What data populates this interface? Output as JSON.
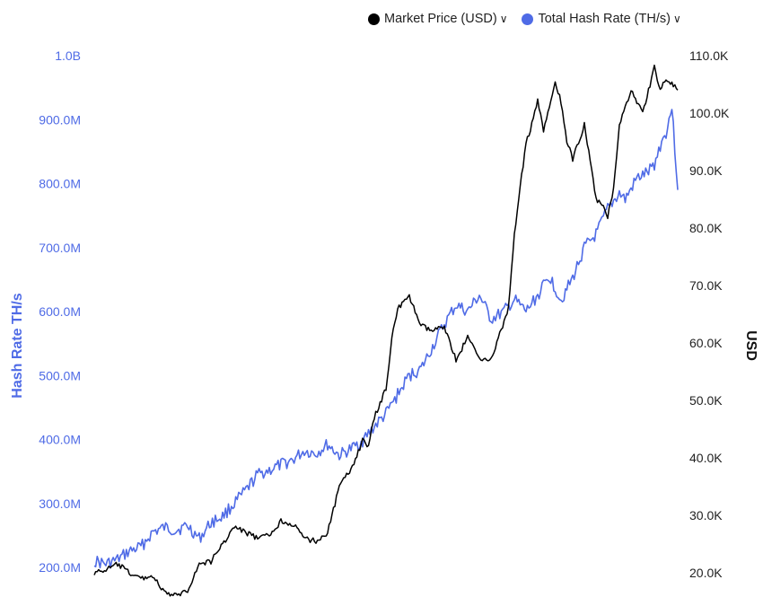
{
  "legend": {
    "items": [
      {
        "label": "Market Price (USD)",
        "color": "#000000",
        "icon": "chevron-down-icon"
      },
      {
        "label": "Total Hash Rate (TH/s)",
        "color": "#4f6be6",
        "icon": "chevron-down-icon"
      }
    ]
  },
  "chart_data": {
    "type": "line",
    "title": "",
    "left_axis": {
      "label": "Hash Rate TH/s",
      "range": [
        200000000,
        1000000000
      ],
      "ticks": [
        "200.0M",
        "300.0M",
        "400.0M",
        "500.0M",
        "600.0M",
        "700.0M",
        "800.0M",
        "900.0M",
        "1.0B"
      ]
    },
    "right_axis": {
      "label": "USD",
      "range": [
        20000,
        110000
      ],
      "ticks": [
        "20.0K",
        "30.0K",
        "40.0K",
        "50.0K",
        "60.0K",
        "70.0K",
        "80.0K",
        "90.0K",
        "100.0K",
        "110.0K"
      ]
    },
    "grid": false,
    "legend_position": "top-right",
    "x_range": [
      0,
      100
    ],
    "series": [
      {
        "name": "Total Hash Rate (TH/s)",
        "axis": "left",
        "color": "#4f6be6",
        "points": [
          [
            0,
            210000000
          ],
          [
            2,
            205000000
          ],
          [
            4,
            212000000
          ],
          [
            6,
            225000000
          ],
          [
            8,
            232000000
          ],
          [
            10,
            255000000
          ],
          [
            12,
            262000000
          ],
          [
            14,
            258000000
          ],
          [
            16,
            265000000
          ],
          [
            18,
            245000000
          ],
          [
            20,
            270000000
          ],
          [
            22,
            280000000
          ],
          [
            24,
            300000000
          ],
          [
            26,
            320000000
          ],
          [
            28,
            345000000
          ],
          [
            30,
            352000000
          ],
          [
            32,
            360000000
          ],
          [
            34,
            368000000
          ],
          [
            36,
            382000000
          ],
          [
            38,
            378000000
          ],
          [
            40,
            392000000
          ],
          [
            42,
            375000000
          ],
          [
            44,
            385000000
          ],
          [
            46,
            398000000
          ],
          [
            48,
            420000000
          ],
          [
            50,
            440000000
          ],
          [
            52,
            470000000
          ],
          [
            54,
            500000000
          ],
          [
            56,
            510000000
          ],
          [
            58,
            545000000
          ],
          [
            60,
            580000000
          ],
          [
            62,
            610000000
          ],
          [
            64,
            600000000
          ],
          [
            66,
            625000000
          ],
          [
            68,
            588000000
          ],
          [
            70,
            598000000
          ],
          [
            72,
            618000000
          ],
          [
            74,
            600000000
          ],
          [
            76,
            625000000
          ],
          [
            78,
            655000000
          ],
          [
            80,
            618000000
          ],
          [
            82,
            652000000
          ],
          [
            84,
            700000000
          ],
          [
            86,
            720000000
          ],
          [
            88,
            760000000
          ],
          [
            90,
            785000000
          ],
          [
            91,
            775000000
          ],
          [
            93,
            808000000
          ],
          [
            95,
            818000000
          ],
          [
            96,
            830000000
          ],
          [
            97,
            860000000
          ],
          [
            98,
            880000000
          ],
          [
            99,
            920000000
          ],
          [
            100,
            790000000
          ]
        ]
      },
      {
        "name": "Market Price (USD)",
        "axis": "right",
        "color": "#000000",
        "points": [
          [
            0,
            20000
          ],
          [
            2,
            20500
          ],
          [
            4,
            21500
          ],
          [
            6,
            20000
          ],
          [
            8,
            19000
          ],
          [
            10,
            19500
          ],
          [
            12,
            16500
          ],
          [
            14,
            16000
          ],
          [
            16,
            17000
          ],
          [
            18,
            21500
          ],
          [
            20,
            22000
          ],
          [
            22,
            25000
          ],
          [
            24,
            28000
          ],
          [
            26,
            27000
          ],
          [
            28,
            26000
          ],
          [
            30,
            26500
          ],
          [
            32,
            29000
          ],
          [
            34,
            28500
          ],
          [
            36,
            26000
          ],
          [
            38,
            25500
          ],
          [
            40,
            27000
          ],
          [
            42,
            35000
          ],
          [
            44,
            38000
          ],
          [
            46,
            43000
          ],
          [
            47,
            42000
          ],
          [
            48,
            47000
          ],
          [
            50,
            52000
          ],
          [
            51,
            61000
          ],
          [
            52,
            66000
          ],
          [
            54,
            68000
          ],
          [
            56,
            63000
          ],
          [
            58,
            62000
          ],
          [
            60,
            63000
          ],
          [
            62,
            57000
          ],
          [
            64,
            61000
          ],
          [
            66,
            57500
          ],
          [
            68,
            57000
          ],
          [
            70,
            63000
          ],
          [
            71,
            66000
          ],
          [
            72,
            79000
          ],
          [
            74,
            95000
          ],
          [
            75,
            98000
          ],
          [
            76,
            102000
          ],
          [
            77,
            97000
          ],
          [
            79,
            105000
          ],
          [
            80,
            102000
          ],
          [
            81,
            95000
          ],
          [
            82,
            92000
          ],
          [
            84,
            98000
          ],
          [
            86,
            85000
          ],
          [
            87,
            84000
          ],
          [
            88,
            82000
          ],
          [
            89,
            87000
          ],
          [
            90,
            98000
          ],
          [
            92,
            104000
          ],
          [
            94,
            100000
          ],
          [
            96,
            108000
          ],
          [
            97,
            104000
          ],
          [
            98,
            106000
          ],
          [
            100,
            104000
          ]
        ]
      }
    ]
  }
}
